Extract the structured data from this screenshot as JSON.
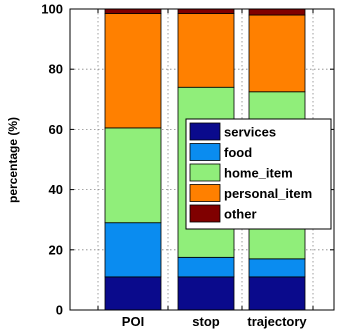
{
  "chart_data": {
    "type": "bar",
    "stacked": true,
    "categories": [
      "POI",
      "stop",
      "trajectory"
    ],
    "series": [
      {
        "name": "services",
        "color": "#0a0a8c",
        "values": [
          11,
          11,
          11
        ]
      },
      {
        "name": "food",
        "color": "#0a8cf0",
        "values": [
          18,
          6.5,
          6
        ]
      },
      {
        "name": "home_item",
        "color": "#90ee7a",
        "values": [
          31.5,
          56.5,
          55.5
        ]
      },
      {
        "name": "personal_item",
        "color": "#ff8000",
        "values": [
          38,
          24.5,
          25.5
        ]
      },
      {
        "name": "other",
        "color": "#800000",
        "values": [
          1.5,
          1.5,
          2
        ]
      }
    ],
    "ylabel": "percentage (%)",
    "xlabel": "",
    "title": "",
    "ylim": [
      0,
      100
    ],
    "yticks": [
      0,
      20,
      40,
      60,
      80,
      100
    ],
    "grid": true,
    "legend_position": "right-center"
  }
}
